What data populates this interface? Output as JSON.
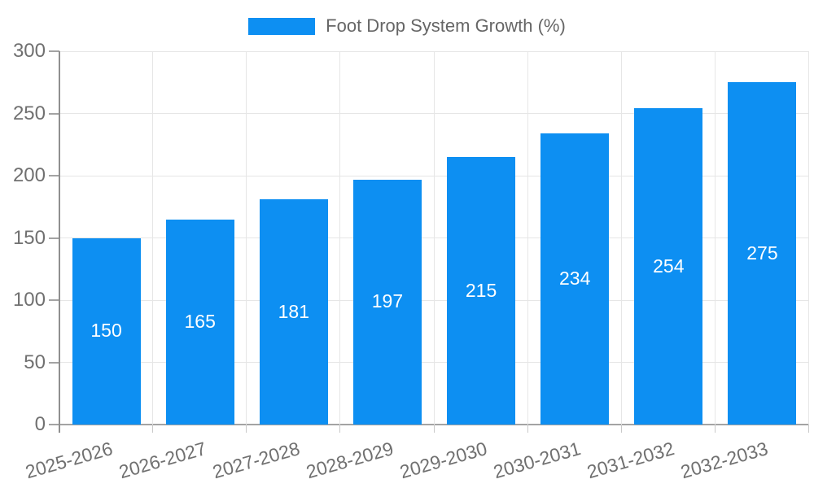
{
  "chart_data": {
    "type": "bar",
    "title": "Foot Drop System Growth (%)",
    "legend": {
      "label": "Foot Drop System Growth (%)",
      "position": "top"
    },
    "categories": [
      "2025-2026",
      "2026-2027",
      "2027-2028",
      "2028-2029",
      "2029-2030",
      "2030-2031",
      "2031-2032",
      "2032-2033"
    ],
    "series": [
      {
        "name": "Foot Drop System Growth (%)",
        "values": [
          150,
          165,
          181,
          197,
          215,
          234,
          254,
          275
        ]
      }
    ],
    "values": [
      150,
      165,
      181,
      197,
      215,
      234,
      254,
      275
    ],
    "xlabel": "",
    "ylabel": "",
    "ylim": [
      0,
      300
    ],
    "yticks": [
      0,
      50,
      100,
      150,
      200,
      250,
      300
    ],
    "grid": true,
    "value_label_position": "inside-center",
    "x_tick_rotation_deg": -16,
    "colors": {
      "bar": "#0D8FF2",
      "value_label": "#FFFFFF",
      "grid": "#E6E6E6",
      "axis": "#A3A3A3",
      "tick_label": "#707070",
      "legend_text": "#666666",
      "background": "#FFFFFF"
    }
  }
}
